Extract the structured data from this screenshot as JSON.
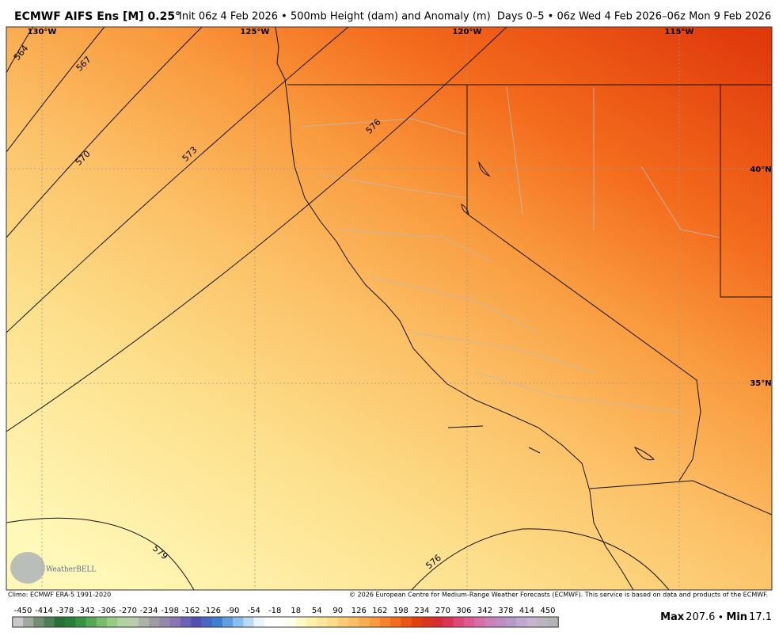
{
  "header": {
    "title": "ECMWF AIFS Ens [M] 0.25°",
    "subtitle": "Init 06z 4 Feb 2026 • 500mb Height (dam) and Anomaly (m)  Days 0–5 • 06z Wed 4 Feb 2026–06z Mon 9 Feb 2026"
  },
  "map": {
    "lon_labels": [
      "130°W",
      "125°W",
      "120°W",
      "115°W"
    ],
    "lat_labels": [
      "40°N",
      "35°N"
    ],
    "contour_labels": [
      "564",
      "567",
      "570",
      "573",
      "576",
      "579",
      "576"
    ],
    "logo": "WeatherBELL"
  },
  "footer": {
    "climo": "Climo: ECMWF ERA-5 1991-2020",
    "copyright": "© 2026 European Centre for Medium-Range Weather Forecasts (ECMWF). This service is based on data and products of the ECMWF."
  },
  "colorbar": {
    "labels": [
      -450,
      -414,
      -378,
      -342,
      -306,
      -270,
      -234,
      -198,
      -162,
      -126,
      -90,
      -54,
      -18,
      18,
      54,
      90,
      126,
      162,
      198,
      234,
      270,
      306,
      342,
      378,
      414,
      450
    ]
  },
  "stats": {
    "max_label": "Max",
    "max": 207.6,
    "min_label": "Min",
    "min": 17.1
  }
}
